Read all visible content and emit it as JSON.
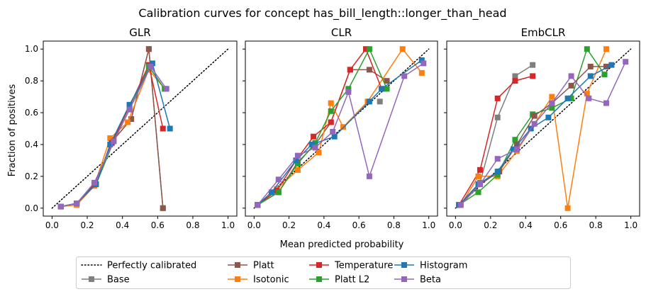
{
  "figure": {
    "title": "Calibration curves for concept has_bill_length::longer_than_head",
    "xlabel": "Mean predicted probability",
    "ylabel": "Fraction of positives"
  },
  "legend": {
    "placement": "bottom-center",
    "entries": [
      {
        "label": "Perfectly calibrated",
        "color": "#000000",
        "style": "dotted",
        "marker": "none"
      },
      {
        "label": "Base",
        "color": "#7f7f7f",
        "style": "solid",
        "marker": "square"
      },
      {
        "label": "Platt",
        "color": "#8c564b",
        "style": "solid",
        "marker": "square"
      },
      {
        "label": "Isotonic",
        "color": "#ff7f0e",
        "style": "solid",
        "marker": "square"
      },
      {
        "label": "Temperature",
        "color": "#d62728",
        "style": "solid",
        "marker": "square"
      },
      {
        "label": "Platt L2",
        "color": "#2ca02c",
        "style": "solid",
        "marker": "square"
      },
      {
        "label": "Histogram",
        "color": "#1f77b4",
        "style": "solid",
        "marker": "square"
      },
      {
        "label": "Beta",
        "color": "#9467bd",
        "style": "solid",
        "marker": "square"
      }
    ]
  },
  "chart_data": [
    {
      "type": "line",
      "title": "GLR",
      "xlim": [
        -0.05,
        1.05
      ],
      "ylim": [
        -0.05,
        1.05
      ],
      "xticks": [
        "0.0",
        "0.2",
        "0.4",
        "0.6",
        "0.8",
        "1.0"
      ],
      "yticks": [
        "0.0",
        "0.2",
        "0.4",
        "0.6",
        "0.8",
        "1.0"
      ],
      "series": [
        {
          "name": "Perfectly calibrated",
          "x": [
            0,
            1
          ],
          "y": [
            0,
            1
          ]
        },
        {
          "name": "Base",
          "x": [
            0.05,
            0.14,
            0.25,
            0.35,
            0.45,
            0.55,
            0.63
          ],
          "y": [
            0.01,
            0.03,
            0.15,
            0.43,
            0.56,
            1.0,
            0.0
          ]
        },
        {
          "name": "Platt",
          "x": [
            0.05,
            0.14,
            0.25,
            0.35,
            0.45,
            0.55,
            0.63
          ],
          "y": [
            0.01,
            0.03,
            0.15,
            0.43,
            0.56,
            1.0,
            0.0
          ]
        },
        {
          "name": "Isotonic",
          "x": [
            0.05,
            0.14,
            0.24,
            0.33,
            0.43,
            0.55,
            0.64
          ],
          "y": [
            0.01,
            0.02,
            0.14,
            0.44,
            0.54,
            0.87,
            0.75
          ]
        },
        {
          "name": "Temperature",
          "x": [
            0.05,
            0.14,
            0.24,
            0.34,
            0.44,
            0.55,
            0.63
          ],
          "y": [
            0.01,
            0.03,
            0.15,
            0.41,
            0.64,
            0.9,
            0.5
          ]
        },
        {
          "name": "Platt L2",
          "x": [
            0.05,
            0.14,
            0.25,
            0.35,
            0.44,
            0.55,
            0.64
          ],
          "y": [
            0.01,
            0.03,
            0.15,
            0.42,
            0.62,
            0.89,
            0.75
          ]
        },
        {
          "name": "Histogram",
          "x": [
            0.05,
            0.14,
            0.25,
            0.33,
            0.44,
            0.57,
            0.67
          ],
          "y": [
            0.01,
            0.03,
            0.15,
            0.4,
            0.65,
            0.91,
            0.5
          ]
        },
        {
          "name": "Beta",
          "x": [
            0.05,
            0.14,
            0.24,
            0.35,
            0.44,
            0.56,
            0.65
          ],
          "y": [
            0.01,
            0.03,
            0.16,
            0.42,
            0.62,
            0.89,
            0.75
          ]
        }
      ]
    },
    {
      "type": "line",
      "title": "CLR",
      "xlim": [
        -0.05,
        1.05
      ],
      "ylim": [
        -0.05,
        1.05
      ],
      "xticks": [
        "0.0",
        "0.2",
        "0.4",
        "0.6",
        "0.8",
        "1.0"
      ],
      "yticks": [
        "0.0",
        "0.2",
        "0.4",
        "0.6",
        "0.8",
        "1.0"
      ],
      "series": [
        {
          "name": "Perfectly calibrated",
          "x": [
            0,
            1
          ],
          "y": [
            0,
            1
          ]
        },
        {
          "name": "Platt",
          "x": [
            0.02,
            0.14,
            0.25,
            0.35,
            0.44,
            0.55,
            0.66,
            0.76
          ],
          "y": [
            0.02,
            0.1,
            0.29,
            0.4,
            0.54,
            0.87,
            0.87,
            0.8
          ]
        },
        {
          "name": "Isotonic",
          "x": [
            0.02,
            0.13,
            0.25,
            0.37,
            0.44,
            0.51,
            0.65,
            0.85,
            0.96
          ],
          "y": [
            0.02,
            0.12,
            0.24,
            0.35,
            0.66,
            0.51,
            0.67,
            1.0,
            0.85
          ]
        },
        {
          "name": "Temperature",
          "x": [
            0.02,
            0.13,
            0.24,
            0.34,
            0.44,
            0.55,
            0.64,
            0.73
          ],
          "y": [
            0.02,
            0.11,
            0.3,
            0.45,
            0.54,
            0.87,
            1.0,
            0.75
          ]
        },
        {
          "name": "Platt L2",
          "x": [
            0.02,
            0.14,
            0.25,
            0.35,
            0.44,
            0.54,
            0.66,
            0.76
          ],
          "y": [
            0.02,
            0.1,
            0.28,
            0.41,
            0.61,
            0.75,
            1.0,
            0.75
          ]
        },
        {
          "name": "Histogram",
          "x": [
            0.02,
            0.1,
            0.24,
            0.33,
            0.46,
            0.66,
            0.73,
            0.96
          ],
          "y": [
            0.02,
            0.1,
            0.3,
            0.4,
            0.45,
            0.67,
            0.75,
            0.93
          ]
        },
        {
          "name": "Beta",
          "x": [
            0.02,
            0.14,
            0.25,
            0.35,
            0.45,
            0.54,
            0.66,
            0.86,
            0.97
          ],
          "y": [
            0.02,
            0.18,
            0.33,
            0.38,
            0.48,
            0.73,
            0.2,
            0.83,
            0.91
          ]
        },
        {
          "name": "Base",
          "x": [
            0.72
          ],
          "y": [
            0.67
          ]
        }
      ]
    },
    {
      "type": "line",
      "title": "EmbCLR",
      "xlim": [
        -0.05,
        1.05
      ],
      "ylim": [
        -0.05,
        1.05
      ],
      "xticks": [
        "0.0",
        "0.2",
        "0.4",
        "0.6",
        "0.8",
        "1.0"
      ],
      "yticks": [
        "0.0",
        "0.2",
        "0.4",
        "0.6",
        "0.8",
        "1.0"
      ],
      "series": [
        {
          "name": "Perfectly calibrated",
          "x": [
            0,
            1
          ],
          "y": [
            0,
            1
          ]
        },
        {
          "name": "Base",
          "x": [
            0.02,
            0.14,
            0.24,
            0.34,
            0.44
          ],
          "y": [
            0.02,
            0.16,
            0.57,
            0.83,
            0.9
          ]
        },
        {
          "name": "Temperature",
          "x": [
            0.02,
            0.14,
            0.24,
            0.34,
            0.44
          ],
          "y": [
            0.02,
            0.24,
            0.69,
            0.8,
            0.83
          ]
        },
        {
          "name": "Isotonic",
          "x": [
            0.03,
            0.13,
            0.24,
            0.35,
            0.55,
            0.64,
            0.75,
            0.86
          ],
          "y": [
            0.02,
            0.2,
            0.2,
            0.36,
            0.7,
            0.0,
            0.72,
            1.0
          ]
        },
        {
          "name": "Platt L2",
          "x": [
            0.02,
            0.13,
            0.24,
            0.34,
            0.44,
            0.55,
            0.66,
            0.75,
            0.85
          ],
          "y": [
            0.02,
            0.1,
            0.21,
            0.43,
            0.59,
            0.63,
            0.69,
            1.0,
            0.84
          ]
        },
        {
          "name": "Platt",
          "x": [
            0.02,
            0.14,
            0.25,
            0.35,
            0.45,
            0.55,
            0.66,
            0.77,
            0.86
          ],
          "y": [
            0.02,
            0.15,
            0.23,
            0.4,
            0.58,
            0.66,
            0.77,
            0.89,
            0.89
          ]
        },
        {
          "name": "Histogram",
          "x": [
            0.02,
            0.13,
            0.24,
            0.33,
            0.43,
            0.53,
            0.64,
            0.77,
            0.89
          ],
          "y": [
            0.02,
            0.15,
            0.23,
            0.37,
            0.5,
            0.57,
            0.69,
            0.83,
            0.9
          ]
        },
        {
          "name": "Beta",
          "x": [
            0.03,
            0.14,
            0.24,
            0.35,
            0.45,
            0.55,
            0.66,
            0.76,
            0.86,
            0.97
          ],
          "y": [
            0.02,
            0.15,
            0.31,
            0.37,
            0.53,
            0.66,
            0.83,
            0.69,
            0.66,
            0.92
          ]
        }
      ]
    }
  ]
}
